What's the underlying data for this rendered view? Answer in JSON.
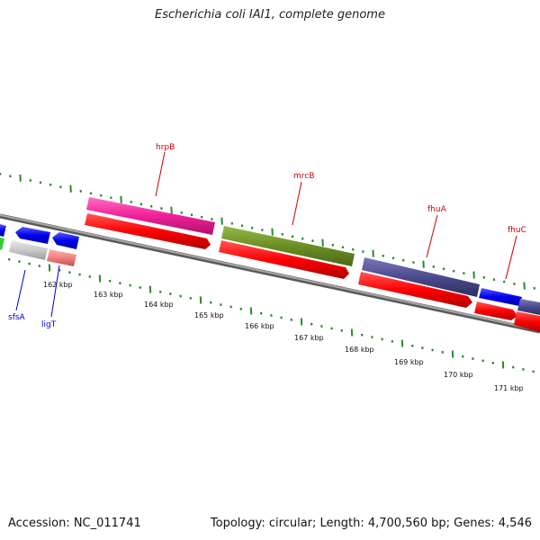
{
  "title": "Escherichia coli IAI1, complete genome",
  "footer": {
    "accession": "Accession: NC_011741",
    "summary": "Topology: circular; Length: 4,700,560 bp; Genes: 4,546"
  },
  "scale_labels": [
    "162 kbp",
    "163 kbp",
    "164 kbp",
    "165 kbp",
    "166 kbp",
    "167 kbp",
    "168 kbp",
    "169 kbp",
    "170 kbp",
    "171 kbp"
  ],
  "gene_labels": [
    {
      "text": "hrpB",
      "color": "#cc0000"
    },
    {
      "text": "mrcB",
      "color": "#cc0000"
    },
    {
      "text": "fhuA",
      "color": "#cc0000"
    },
    {
      "text": "fhuC",
      "color": "#cc0000"
    },
    {
      "text": "sfsA",
      "color": "#0000cc"
    },
    {
      "text": "ligT",
      "color": "#0000cc"
    }
  ],
  "colors": {
    "backbone": "#8a8a8a",
    "tick": "#2a8a2a",
    "cds_red": "#ff0000",
    "hrpB": "#f0209a",
    "mrcB": "#6b8e23",
    "fhuA": "#4b4a8c",
    "fhuC": "#0000ee",
    "blue_gene": "#0000ee",
    "green_gene": "#33cc33",
    "grey_gene": "#c8c8c8",
    "pink_gene": "#f08080"
  }
}
